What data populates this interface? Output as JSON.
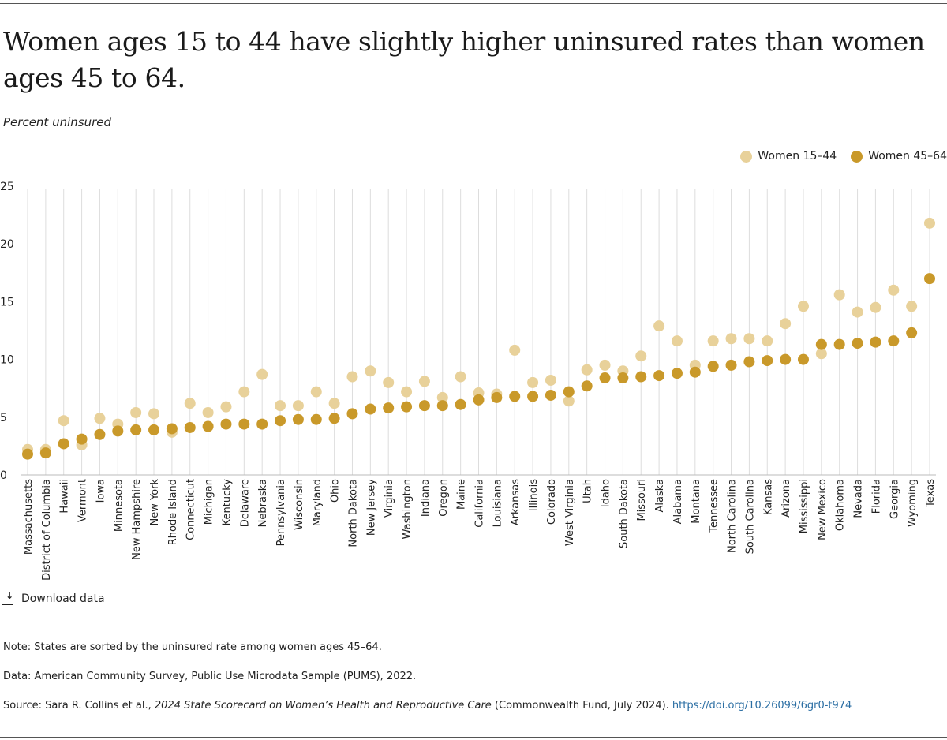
{
  "title": "Women ages 15 to 44 have slightly higher uninsured rates than women ages 45 to 64.",
  "y_axis_caption": "Percent uninsured",
  "legend": {
    "series1": "Women 15–44",
    "series2": "Women 45–64"
  },
  "download_label": "Download data",
  "notes": {
    "note": "Note: States are sorted by the uninsured rate among women ages 45–64.",
    "data": "Data: American Community Survey, Public Use Microdata Sample (PUMS), 2022.",
    "source_prefix": "Source: Sara R. Collins et al., ",
    "source_title": "2024 State Scorecard on Women’s Health and Reproductive Care",
    "source_suffix": " (Commonwealth Fund, July 2024). ",
    "source_link": "https://doi.org/10.26099/6gr0-t974"
  },
  "colors": {
    "series1": "#e8d19a",
    "series2": "#c9992a",
    "grid": "#dddddd",
    "link": "#2b6ea3"
  },
  "chart_data": {
    "type": "scatter",
    "title": "Women ages 15 to 44 have slightly higher uninsured rates than women ages 45 to 64.",
    "ylabel": "Percent uninsured",
    "ylim": [
      0,
      25
    ],
    "yticks": [
      0,
      5,
      10,
      15,
      20,
      25
    ],
    "grid": true,
    "legend_position": "top-right",
    "categories": [
      "Massachusetts",
      "District of Columbia",
      "Hawaii",
      "Vermont",
      "Iowa",
      "Minnesota",
      "New Hampshire",
      "New York",
      "Rhode Island",
      "Connecticut",
      "Michigan",
      "Kentucky",
      "Delaware",
      "Nebraska",
      "Pennsylvania",
      "Wisconsin",
      "Maryland",
      "Ohio",
      "North Dakota",
      "New Jersey",
      "Virginia",
      "Washington",
      "Indiana",
      "Oregon",
      "Maine",
      "California",
      "Louisiana",
      "Arkansas",
      "Illinois",
      "Colorado",
      "West Virginia",
      "Utah",
      "Idaho",
      "South Dakota",
      "Missouri",
      "Alaska",
      "Alabama",
      "Montana",
      "Tennessee",
      "North Carolina",
      "South Carolina",
      "Kansas",
      "Arizona",
      "Mississippi",
      "New Mexico",
      "Oklahoma",
      "Nevada",
      "Florida",
      "Georgia",
      "Wyoming",
      "Texas"
    ],
    "series": [
      {
        "name": "Women 15–44",
        "values": [
          2.2,
          2.2,
          4.7,
          2.6,
          4.9,
          4.4,
          5.4,
          5.3,
          3.7,
          6.2,
          5.4,
          5.9,
          7.2,
          8.7,
          6.0,
          6.0,
          7.2,
          6.2,
          8.5,
          9.0,
          8.0,
          7.2,
          8.1,
          6.7,
          8.5,
          7.1,
          7.0,
          10.8,
          8.0,
          8.2,
          6.4,
          9.1,
          9.5,
          9.0,
          10.3,
          12.9,
          11.6,
          9.5,
          11.6,
          11.8,
          11.8,
          11.6,
          13.1,
          14.6,
          10.5,
          15.6,
          14.1,
          14.5,
          16.0,
          14.6,
          21.8
        ]
      },
      {
        "name": "Women 45–64",
        "values": [
          1.8,
          1.9,
          2.7,
          3.1,
          3.5,
          3.8,
          3.9,
          3.9,
          4.0,
          4.1,
          4.2,
          4.4,
          4.4,
          4.4,
          4.7,
          4.8,
          4.8,
          4.9,
          5.3,
          5.7,
          5.8,
          5.9,
          6.0,
          6.0,
          6.1,
          6.5,
          6.7,
          6.8,
          6.8,
          6.9,
          7.2,
          7.7,
          8.4,
          8.4,
          8.5,
          8.6,
          8.8,
          8.9,
          9.4,
          9.5,
          9.8,
          9.9,
          10.0,
          10.0,
          11.3,
          11.3,
          11.4,
          11.5,
          11.6,
          12.3,
          17.0
        ]
      }
    ]
  }
}
